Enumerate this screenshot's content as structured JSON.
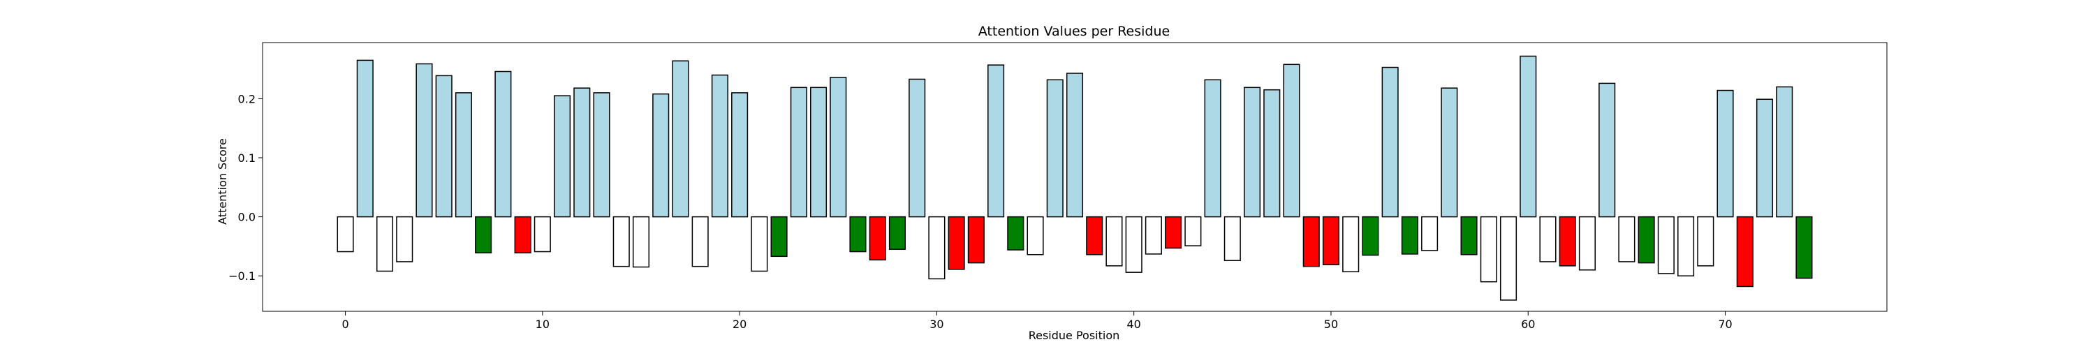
{
  "chart_data": {
    "type": "bar",
    "title": "Attention Values per Residue",
    "xlabel": "Residue Position",
    "ylabel": "Attention Score",
    "xlim": [
      -4.2,
      78.2
    ],
    "ylim": [
      -0.16,
      0.295
    ],
    "xticks": [
      0,
      10,
      20,
      30,
      40,
      50,
      60,
      70
    ],
    "yticks": [
      -0.1,
      0.0,
      0.1,
      0.2
    ],
    "ytick_labels": [
      "−0.1",
      "0.0",
      "0.1",
      "0.2"
    ],
    "grid": false,
    "legend": "none",
    "colors": {
      "positive": "#add8e6",
      "negative": "#ffffff",
      "highlight_red": "#ff0000",
      "highlight_green": "#008000",
      "edge": "#000000"
    },
    "x": [
      0,
      1,
      2,
      3,
      4,
      5,
      6,
      7,
      8,
      9,
      10,
      11,
      12,
      13,
      14,
      15,
      16,
      17,
      18,
      19,
      20,
      21,
      22,
      23,
      24,
      25,
      26,
      27,
      28,
      29,
      30,
      31,
      32,
      33,
      34,
      35,
      36,
      37,
      38,
      39,
      40,
      41,
      42,
      43,
      44,
      45,
      46,
      47,
      48,
      49,
      50,
      51,
      52,
      53,
      54,
      55,
      56,
      57,
      58,
      59,
      60,
      61,
      62,
      63,
      64,
      65,
      66,
      67,
      68,
      69,
      70,
      71,
      72,
      73,
      74
    ],
    "values": [
      -0.059,
      0.265,
      -0.092,
      -0.076,
      0.259,
      0.239,
      0.21,
      -0.061,
      0.246,
      -0.061,
      -0.059,
      0.205,
      0.218,
      0.21,
      -0.084,
      -0.085,
      0.208,
      0.264,
      -0.084,
      0.24,
      0.21,
      -0.092,
      -0.067,
      0.219,
      0.219,
      0.236,
      -0.059,
      -0.073,
      -0.055,
      0.233,
      -0.105,
      -0.089,
      -0.078,
      0.257,
      -0.056,
      -0.064,
      0.232,
      0.243,
      -0.064,
      -0.083,
      -0.094,
      -0.063,
      -0.053,
      -0.049,
      0.232,
      -0.074,
      0.219,
      0.215,
      0.258,
      -0.084,
      -0.081,
      -0.093,
      -0.065,
      0.253,
      -0.063,
      -0.057,
      0.218,
      -0.064,
      -0.11,
      -0.141,
      0.272,
      -0.076,
      -0.083,
      -0.09,
      0.226,
      -0.076,
      -0.078,
      -0.096,
      -0.1,
      -0.083,
      0.214,
      -0.118,
      0.199,
      0.22,
      -0.104
    ],
    "bar_colors": [
      "white",
      "lightblue",
      "white",
      "white",
      "lightblue",
      "lightblue",
      "lightblue",
      "green",
      "lightblue",
      "red",
      "white",
      "lightblue",
      "lightblue",
      "lightblue",
      "white",
      "white",
      "lightblue",
      "lightblue",
      "white",
      "lightblue",
      "lightblue",
      "white",
      "green",
      "lightblue",
      "lightblue",
      "lightblue",
      "green",
      "red",
      "green",
      "lightblue",
      "white",
      "red",
      "red",
      "lightblue",
      "green",
      "white",
      "lightblue",
      "lightblue",
      "red",
      "white",
      "white",
      "white",
      "red",
      "white",
      "lightblue",
      "white",
      "lightblue",
      "lightblue",
      "lightblue",
      "red",
      "red",
      "white",
      "green",
      "lightblue",
      "green",
      "white",
      "lightblue",
      "green",
      "white",
      "white",
      "lightblue",
      "white",
      "red",
      "white",
      "lightblue",
      "white",
      "green",
      "white",
      "white",
      "white",
      "lightblue",
      "red",
      "lightblue",
      "lightblue",
      "green"
    ]
  }
}
